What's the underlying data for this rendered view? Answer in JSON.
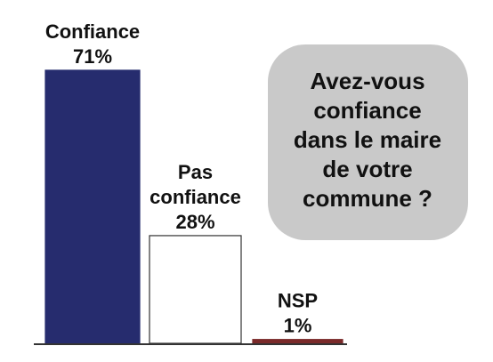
{
  "chart_data": {
    "type": "bar",
    "categories": [
      "Confiance",
      "Pas confiance",
      "NSP"
    ],
    "category_lines": [
      [
        "Confiance"
      ],
      [
        "Pas",
        "confiance"
      ],
      [
        "NSP"
      ]
    ],
    "values": [
      71,
      28,
      1
    ],
    "value_labels": [
      "71%",
      "28%",
      "1%"
    ],
    "colors": [
      "#262c6e",
      "#ffffff",
      "#7a2a2a"
    ],
    "ylim": [
      0,
      71
    ],
    "grid": false,
    "legend": "none",
    "title": "",
    "xlabel": "",
    "ylabel": ""
  },
  "question": {
    "lines": [
      "Avez-vous",
      "confiance",
      "dans le maire",
      "de votre",
      "commune ?"
    ]
  }
}
